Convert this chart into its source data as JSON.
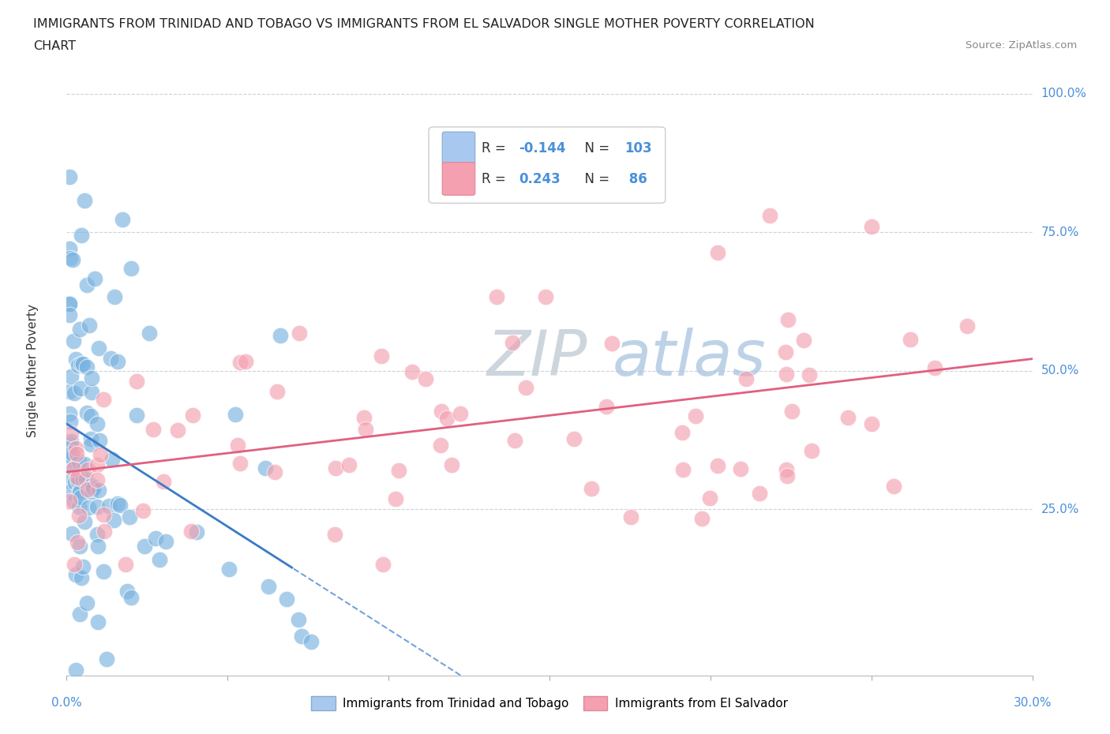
{
  "title_line1": "IMMIGRANTS FROM TRINIDAD AND TOBAGO VS IMMIGRANTS FROM EL SALVADOR SINGLE MOTHER POVERTY CORRELATION",
  "title_line2": "CHART",
  "source": "Source: ZipAtlas.com",
  "ylabel": "Single Mother Poverty",
  "xlim": [
    0.0,
    0.3
  ],
  "ylim": [
    -0.05,
    1.05
  ],
  "ytick_positions": [
    0.25,
    0.5,
    0.75,
    1.0
  ],
  "ytick_labels": [
    "25.0%",
    "50.0%",
    "75.0%",
    "100.0%"
  ],
  "series1_label": "Immigrants from Trinidad and Tobago",
  "series2_label": "Immigrants from El Salvador",
  "series1_color": "#7ab3e0",
  "series2_color": "#f4a0b0",
  "series1_R": -0.144,
  "series1_N": 103,
  "series2_R": 0.243,
  "series2_N": 86,
  "line1_color": "#3a7cc8",
  "line2_color": "#e06080",
  "background_color": "#ffffff",
  "legend_box_color1": "#a8c8f0",
  "legend_box_color2": "#f4a0b0",
  "watermark_color": "#d0dce8"
}
